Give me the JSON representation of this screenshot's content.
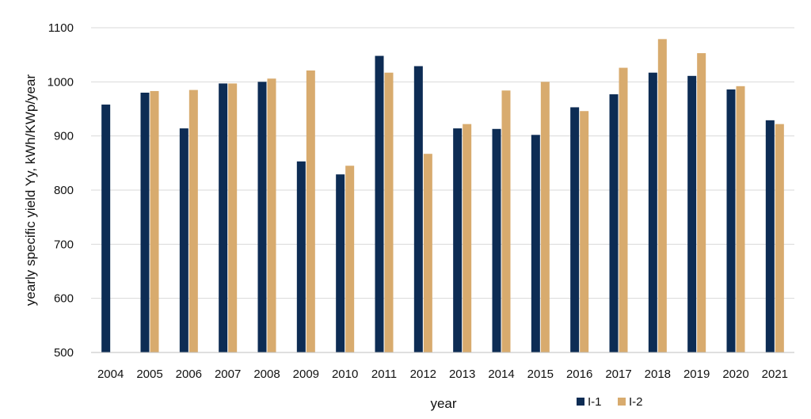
{
  "chart_data": {
    "type": "bar",
    "title": "",
    "xlabel": "year",
    "ylabel": "yearly specific yield Yy, kWh/KWp/year",
    "ylim": [
      500,
      1100
    ],
    "yticks": [
      500,
      600,
      700,
      800,
      900,
      1000,
      1100
    ],
    "grid": true,
    "legend_position": "bottom-right",
    "categories": [
      "2004",
      "2005",
      "2006",
      "2007",
      "2008",
      "2009",
      "2010",
      "2011",
      "2012",
      "2013",
      "2014",
      "2015",
      "2016",
      "2017",
      "2018",
      "2019",
      "2020",
      "2021"
    ],
    "series": [
      {
        "name": "I-1",
        "color": "#0d2c54",
        "values": [
          958,
          980,
          914,
          997,
          1000,
          853,
          829,
          1048,
          1029,
          914,
          913,
          902,
          953,
          977,
          1017,
          1011,
          986,
          929
        ]
      },
      {
        "name": "I-2",
        "color": "#d8ab6e",
        "values": [
          null,
          983,
          985,
          997,
          1006,
          1021,
          845,
          1017,
          867,
          922,
          984,
          1000,
          946,
          1026,
          1079,
          1053,
          992,
          922
        ]
      }
    ]
  }
}
